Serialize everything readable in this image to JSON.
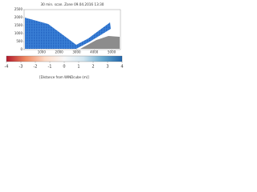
{
  "chart_data": {
    "type": "heatmap",
    "title": "30 min. scan. Zone 09.04.2016 13:30",
    "xlim": [
      0,
      5500
    ],
    "xticks": [
      1000,
      2000,
      3000,
      4000,
      5000
    ],
    "ylim": [
      0,
      2500
    ],
    "yticks": [
      0,
      500,
      1000,
      1500,
      2000,
      2500
    ],
    "colorbar": {
      "lim": [
        -4,
        4
      ],
      "ticks": [
        -4,
        -3,
        -2,
        -1,
        0,
        1,
        2,
        3,
        4
      ],
      "colors": [
        "#b2182b",
        "#ef8a62",
        "#fddbc7",
        "#f7f7f7",
        "#d1e5f0",
        "#67a9cf",
        "#2166ac"
      ],
      "label": "[Distance from WINDcube (m)]"
    }
  }
}
